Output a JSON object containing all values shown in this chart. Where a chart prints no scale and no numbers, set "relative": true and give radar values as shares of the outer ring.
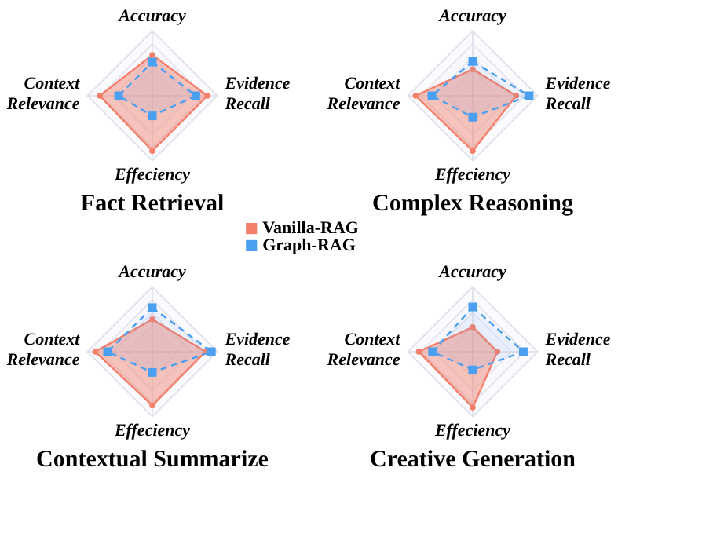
{
  "chart_data": [
    {
      "type": "radar",
      "title": "Fact Retrieval",
      "relative": true,
      "grid": true,
      "legend": "bottom right",
      "categories": [
        "Accuracy",
        "Evidence Recall",
        "Effeciency",
        "Context Relevance"
      ],
      "series": [
        {
          "name": "Vanilla-RAG",
          "color": "#f4806c",
          "marker": "circle",
          "line_style": "solid",
          "values": [
            0.63,
            0.85,
            0.85,
            0.81
          ]
        },
        {
          "name": "Graph-RAG",
          "color": "#4a9ff0",
          "marker": "square",
          "line_style": "dashed",
          "values": [
            0.52,
            0.67,
            0.31,
            0.52
          ]
        }
      ]
    },
    {
      "type": "radar",
      "title": "Complex Reasoning",
      "relative": true,
      "grid": true,
      "categories": [
        "Accuracy",
        "Evidence Recall",
        "Effeciency",
        "Context Relevance"
      ],
      "series": [
        {
          "name": "Vanilla-RAG",
          "color": "#f4806c",
          "marker": "circle",
          "line_style": "solid",
          "values": [
            0.41,
            0.67,
            0.85,
            0.88
          ]
        },
        {
          "name": "Graph-RAG",
          "color": "#4a9ff0",
          "marker": "square",
          "line_style": "dashed",
          "values": [
            0.53,
            0.87,
            0.33,
            0.63
          ]
        }
      ]
    },
    {
      "type": "radar",
      "title": "Contextual Summarize",
      "relative": true,
      "grid": true,
      "categories": [
        "Accuracy",
        "Evidence Recall",
        "Effeciency",
        "Context Relevance"
      ],
      "series": [
        {
          "name": "Vanilla-RAG",
          "color": "#f4806c",
          "marker": "circle",
          "line_style": "solid",
          "values": [
            0.5,
            0.82,
            0.83,
            0.88
          ]
        },
        {
          "name": "Graph-RAG",
          "color": "#4a9ff0",
          "marker": "square",
          "line_style": "dashed",
          "values": [
            0.68,
            0.91,
            0.32,
            0.69
          ]
        }
      ]
    },
    {
      "type": "radar",
      "title": "Creative Generation",
      "relative": true,
      "grid": true,
      "categories": [
        "Accuracy",
        "Evidence Recall",
        "Effeciency",
        "Context Relevance"
      ],
      "series": [
        {
          "name": "Vanilla-RAG",
          "color": "#f4806c",
          "marker": "circle",
          "line_style": "solid",
          "values": [
            0.38,
            0.38,
            0.86,
            0.83
          ]
        },
        {
          "name": "Graph-RAG",
          "color": "#4a9ff0",
          "marker": "square",
          "line_style": "dashed",
          "values": [
            0.69,
            0.78,
            0.28,
            0.62
          ]
        }
      ]
    }
  ]
}
